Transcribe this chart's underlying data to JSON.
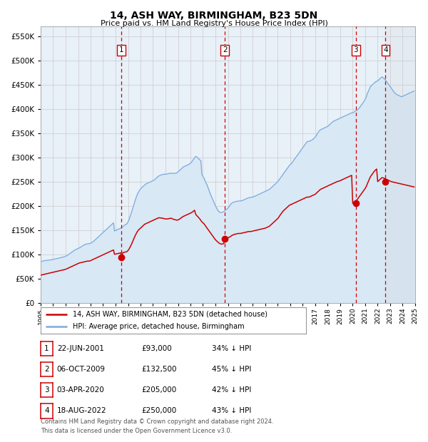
{
  "title": "14, ASH WAY, BIRMINGHAM, B23 5DN",
  "subtitle": "Price paid vs. HM Land Registry's House Price Index (HPI)",
  "legend_line1": "14, ASH WAY, BIRMINGHAM, B23 5DN (detached house)",
  "legend_line2": "HPI: Average price, detached house, Birmingham",
  "footer_line1": "Contains HM Land Registry data © Crown copyright and database right 2024.",
  "footer_line2": "This data is licensed under the Open Government Licence v3.0.",
  "transactions": [
    {
      "num": 1,
      "date": "22-JUN-2001",
      "price": 93000,
      "pct": "34% ↓ HPI"
    },
    {
      "num": 2,
      "date": "06-OCT-2009",
      "price": 132500,
      "pct": "45% ↓ HPI"
    },
    {
      "num": 3,
      "date": "03-APR-2020",
      "price": 205000,
      "pct": "42% ↓ HPI"
    },
    {
      "num": 4,
      "date": "18-AUG-2022",
      "price": 250000,
      "pct": "43% ↓ HPI"
    }
  ],
  "hpi_color": "#7aaadd",
  "hpi_fill": "#d8e8f5",
  "price_color": "#cc0000",
  "marker_color": "#cc0000",
  "vline_color": "#cc0000",
  "background_color": "#ffffff",
  "plot_bg": "#e8f0f8",
  "ylim": [
    0,
    570000
  ],
  "yticks": [
    0,
    50000,
    100000,
    150000,
    200000,
    250000,
    300000,
    350000,
    400000,
    450000,
    500000,
    550000
  ],
  "grid_color": "#cccccc",
  "hpi_values": [
    85000,
    85500,
    86000,
    86500,
    87000,
    87200,
    87500,
    87800,
    88000,
    88200,
    88500,
    89000,
    89500,
    90000,
    90500,
    91000,
    91500,
    92000,
    92500,
    93000,
    93500,
    94000,
    94500,
    95000,
    96000,
    97000,
    98500,
    100000,
    101500,
    103000,
    104500,
    106000,
    107500,
    109000,
    110000,
    111000,
    112000,
    113000,
    114000,
    115500,
    117000,
    118500,
    119500,
    120500,
    121000,
    121500,
    122000,
    122000,
    123000,
    124000,
    125500,
    127000,
    129000,
    131000,
    133000,
    135000,
    137000,
    139000,
    141000,
    143000,
    145000,
    147000,
    149000,
    151000,
    153000,
    155000,
    157000,
    159000,
    161000,
    163000,
    165000,
    148000,
    149000,
    150000,
    151500,
    152000,
    153000,
    154000,
    155000,
    157000,
    159000,
    160500,
    162000,
    163000,
    167000,
    172000,
    178000,
    184000,
    191000,
    198000,
    205000,
    212000,
    218000,
    224000,
    228000,
    232000,
    235000,
    237000,
    239000,
    241000,
    243000,
    245000,
    246000,
    247000,
    248000,
    249000,
    250000,
    251000,
    252000,
    253000,
    255000,
    257000,
    259000,
    261000,
    262000,
    263000,
    264000,
    264500,
    265000,
    265500,
    265000,
    265500,
    266000,
    266500,
    267000,
    267500,
    267000,
    267000,
    267000,
    267000,
    267500,
    268000,
    270000,
    272000,
    274000,
    276000,
    278000,
    280000,
    281000,
    282000,
    283000,
    284000,
    285000,
    286000,
    288000,
    290000,
    293000,
    296000,
    299000,
    302000,
    301000,
    299000,
    297000,
    295000,
    293000,
    265000,
    261000,
    257000,
    252000,
    247000,
    243000,
    237000,
    231000,
    225000,
    220000,
    215000,
    210000,
    205000,
    200000,
    196000,
    192000,
    189000,
    187000,
    186000,
    186500,
    187000,
    188000,
    190000,
    192000,
    193000,
    195000,
    198000,
    201000,
    204000,
    206000,
    207000,
    208000,
    208500,
    209000,
    209500,
    210000,
    210000,
    210000,
    210500,
    211000,
    212000,
    213000,
    214000,
    215000,
    216000,
    216500,
    217000,
    217500,
    218000,
    218000,
    219000,
    220000,
    221000,
    222000,
    223000,
    224000,
    225000,
    226000,
    227000,
    228000,
    229000,
    230000,
    231000,
    232000,
    233000,
    234000,
    236000,
    238000,
    240000,
    242000,
    244000,
    246000,
    248000,
    250000,
    253000,
    256000,
    259000,
    262000,
    265000,
    268000,
    271000,
    274000,
    277000,
    280000,
    283000,
    285000,
    287000,
    290000,
    293000,
    296000,
    299000,
    302000,
    305000,
    308000,
    311000,
    314000,
    317000,
    320000,
    323000,
    326000,
    329000,
    332000,
    333000,
    333000,
    334000,
    335000,
    336000,
    338000,
    340000,
    342000,
    345000,
    349000,
    352000,
    355000,
    357000,
    358000,
    359000,
    360000,
    361000,
    362000,
    363000,
    364000,
    366000,
    368000,
    370000,
    372000,
    374000,
    375000,
    376000,
    377000,
    378000,
    379000,
    380000,
    381000,
    382000,
    383000,
    384000,
    385000,
    386000,
    387000,
    388000,
    389000,
    390000,
    391000,
    392000,
    392000,
    393000,
    395000,
    396000,
    397000,
    399000,
    401000,
    404000,
    407000,
    410000,
    413000,
    416000,
    420000,
    425000,
    431000,
    436000,
    441000,
    446000,
    448000,
    450000,
    452000,
    454000,
    456000,
    457000,
    458000,
    460000,
    462000,
    464000,
    466000,
    465000,
    463000,
    461000,
    458000,
    455000,
    452000,
    449000,
    446000,
    443000,
    440000,
    437000,
    434000,
    432000,
    430000,
    429000,
    428000,
    427000,
    426000,
    425000,
    426000,
    427000,
    428000,
    429000,
    430000,
    431000,
    432000,
    433000,
    434000,
    435000,
    436000,
    437000
  ],
  "price_values": [
    57000,
    57500,
    58000,
    58500,
    59000,
    59500,
    60000,
    60500,
    61000,
    61500,
    62000,
    62500,
    63000,
    63500,
    64000,
    64500,
    65000,
    65500,
    66000,
    66500,
    67000,
    67500,
    68000,
    68500,
    69000,
    70000,
    71000,
    72000,
    73000,
    74000,
    75000,
    76000,
    77000,
    78000,
    79000,
    80000,
    81000,
    82000,
    82500,
    83000,
    83500,
    84000,
    84500,
    85000,
    85500,
    86000,
    86000,
    86000,
    87000,
    88000,
    89000,
    90000,
    91000,
    92000,
    93000,
    94000,
    95000,
    96000,
    97000,
    98000,
    99000,
    100000,
    101000,
    102000,
    103000,
    104000,
    105000,
    106000,
    107000,
    108000,
    109000,
    100000,
    100500,
    101000,
    101500,
    102000,
    102500,
    103000,
    93000,
    103500,
    104000,
    104500,
    105000,
    105500,
    108000,
    111000,
    115000,
    119000,
    124000,
    129000,
    134000,
    139000,
    143000,
    147000,
    150000,
    152000,
    154000,
    156000,
    158000,
    160000,
    162000,
    163000,
    164000,
    165000,
    166000,
    167000,
    168000,
    169000,
    170000,
    171000,
    172000,
    173000,
    174000,
    175000,
    175500,
    175000,
    175000,
    174500,
    174000,
    173500,
    173000,
    173000,
    173000,
    173500,
    174000,
    174500,
    174000,
    173000,
    172000,
    171500,
    171000,
    170500,
    171000,
    172000,
    173500,
    175000,
    176500,
    178000,
    179000,
    180000,
    181000,
    182000,
    183000,
    184000,
    185000,
    186000,
    187500,
    189000,
    191000,
    183000,
    180000,
    178000,
    175500,
    173000,
    170000,
    167000,
    165000,
    163000,
    160000,
    157000,
    154000,
    151000,
    148000,
    145000,
    142000,
    139000,
    136000,
    133000,
    130000,
    128000,
    126000,
    124000,
    122500,
    121500,
    121000,
    121500,
    122000,
    132500,
    133000,
    133500,
    134000,
    135000,
    136000,
    137500,
    139000,
    140000,
    141000,
    141500,
    142000,
    142500,
    143000,
    143000,
    143000,
    143500,
    144000,
    144500,
    145000,
    145500,
    146000,
    146500,
    147000,
    147000,
    147000,
    147500,
    148000,
    148500,
    149000,
    149500,
    150000,
    150500,
    151000,
    151500,
    152000,
    152500,
    153000,
    153500,
    154000,
    155000,
    156000,
    157000,
    158000,
    160000,
    162000,
    164000,
    166000,
    168000,
    170000,
    172000,
    174000,
    177000,
    180000,
    183000,
    186000,
    189000,
    191000,
    193000,
    195000,
    197000,
    199000,
    201000,
    202000,
    203000,
    204000,
    205000,
    206000,
    207000,
    208000,
    209000,
    210000,
    211000,
    212000,
    213000,
    214000,
    215000,
    216000,
    217000,
    218000,
    218000,
    218000,
    219000,
    220000,
    221000,
    222000,
    223000,
    224000,
    226000,
    228000,
    230000,
    232000,
    234000,
    235000,
    236000,
    237000,
    238000,
    239000,
    240000,
    241000,
    242000,
    243000,
    244000,
    245000,
    246000,
    247000,
    248000,
    249000,
    250000,
    250500,
    251000,
    252000,
    253000,
    254000,
    255000,
    256000,
    257000,
    258000,
    259000,
    260000,
    261000,
    262000,
    263000,
    205000,
    206000,
    208000,
    210000,
    212000,
    215000,
    218000,
    221000,
    224000,
    227000,
    230000,
    233000,
    236000,
    240000,
    245000,
    250000,
    255000,
    260000,
    263000,
    266000,
    269000,
    272000,
    274000,
    276000,
    250000,
    252000,
    254000,
    256000,
    258000,
    258000,
    257000,
    256000,
    255000,
    254000,
    253000,
    252000,
    251000,
    250000,
    249500,
    249000,
    248500,
    248000,
    247500,
    247000,
    246500,
    246000,
    245500,
    245000,
    244500,
    244000,
    243500,
    243000,
    242500,
    242000,
    241500,
    241000,
    240500,
    240000,
    239500,
    239000
  ]
}
